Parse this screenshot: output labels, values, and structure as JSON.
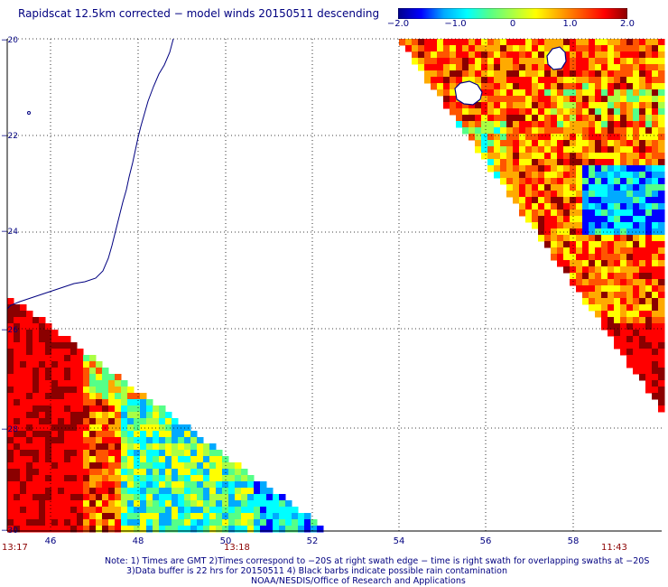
{
  "title": "Rapidscat 12.5km corrected − model winds 20150511 descending",
  "colorbar": {
    "ticks": [
      "−2.0",
      "−1.0",
      "0",
      "1.0",
      "2.0"
    ],
    "range": [
      -2.0,
      2.0
    ],
    "colors": [
      "#00008b",
      "#0000ff",
      "#00aaff",
      "#00ffff",
      "#55ff88",
      "#aaff44",
      "#ffff00",
      "#ffaa00",
      "#ff5500",
      "#ff0000",
      "#8b0000"
    ]
  },
  "map": {
    "lon_labels": [
      "46",
      "48",
      "50",
      "52",
      "54",
      "56",
      "58"
    ],
    "lat_labels": [
      "−20",
      "−22",
      "−24",
      "−26",
      "−28",
      "−30"
    ],
    "time_labels": [
      "13:17",
      "13:18",
      "11:43"
    ],
    "grid": true,
    "coastline_color": "#000080",
    "time_label_color": "#8b0000"
  },
  "notes": [
    "Note: 1) Times are GMT 2)Times correspond to −20S at right swath edge − time is right swath for overlapping swaths at −20S",
    "3)Data buffer is 22 hrs for 20150511 4) Black barbs indicate possible rain contamination",
    "NOAA/NESDIS/Office of Research and Applications"
  ]
}
